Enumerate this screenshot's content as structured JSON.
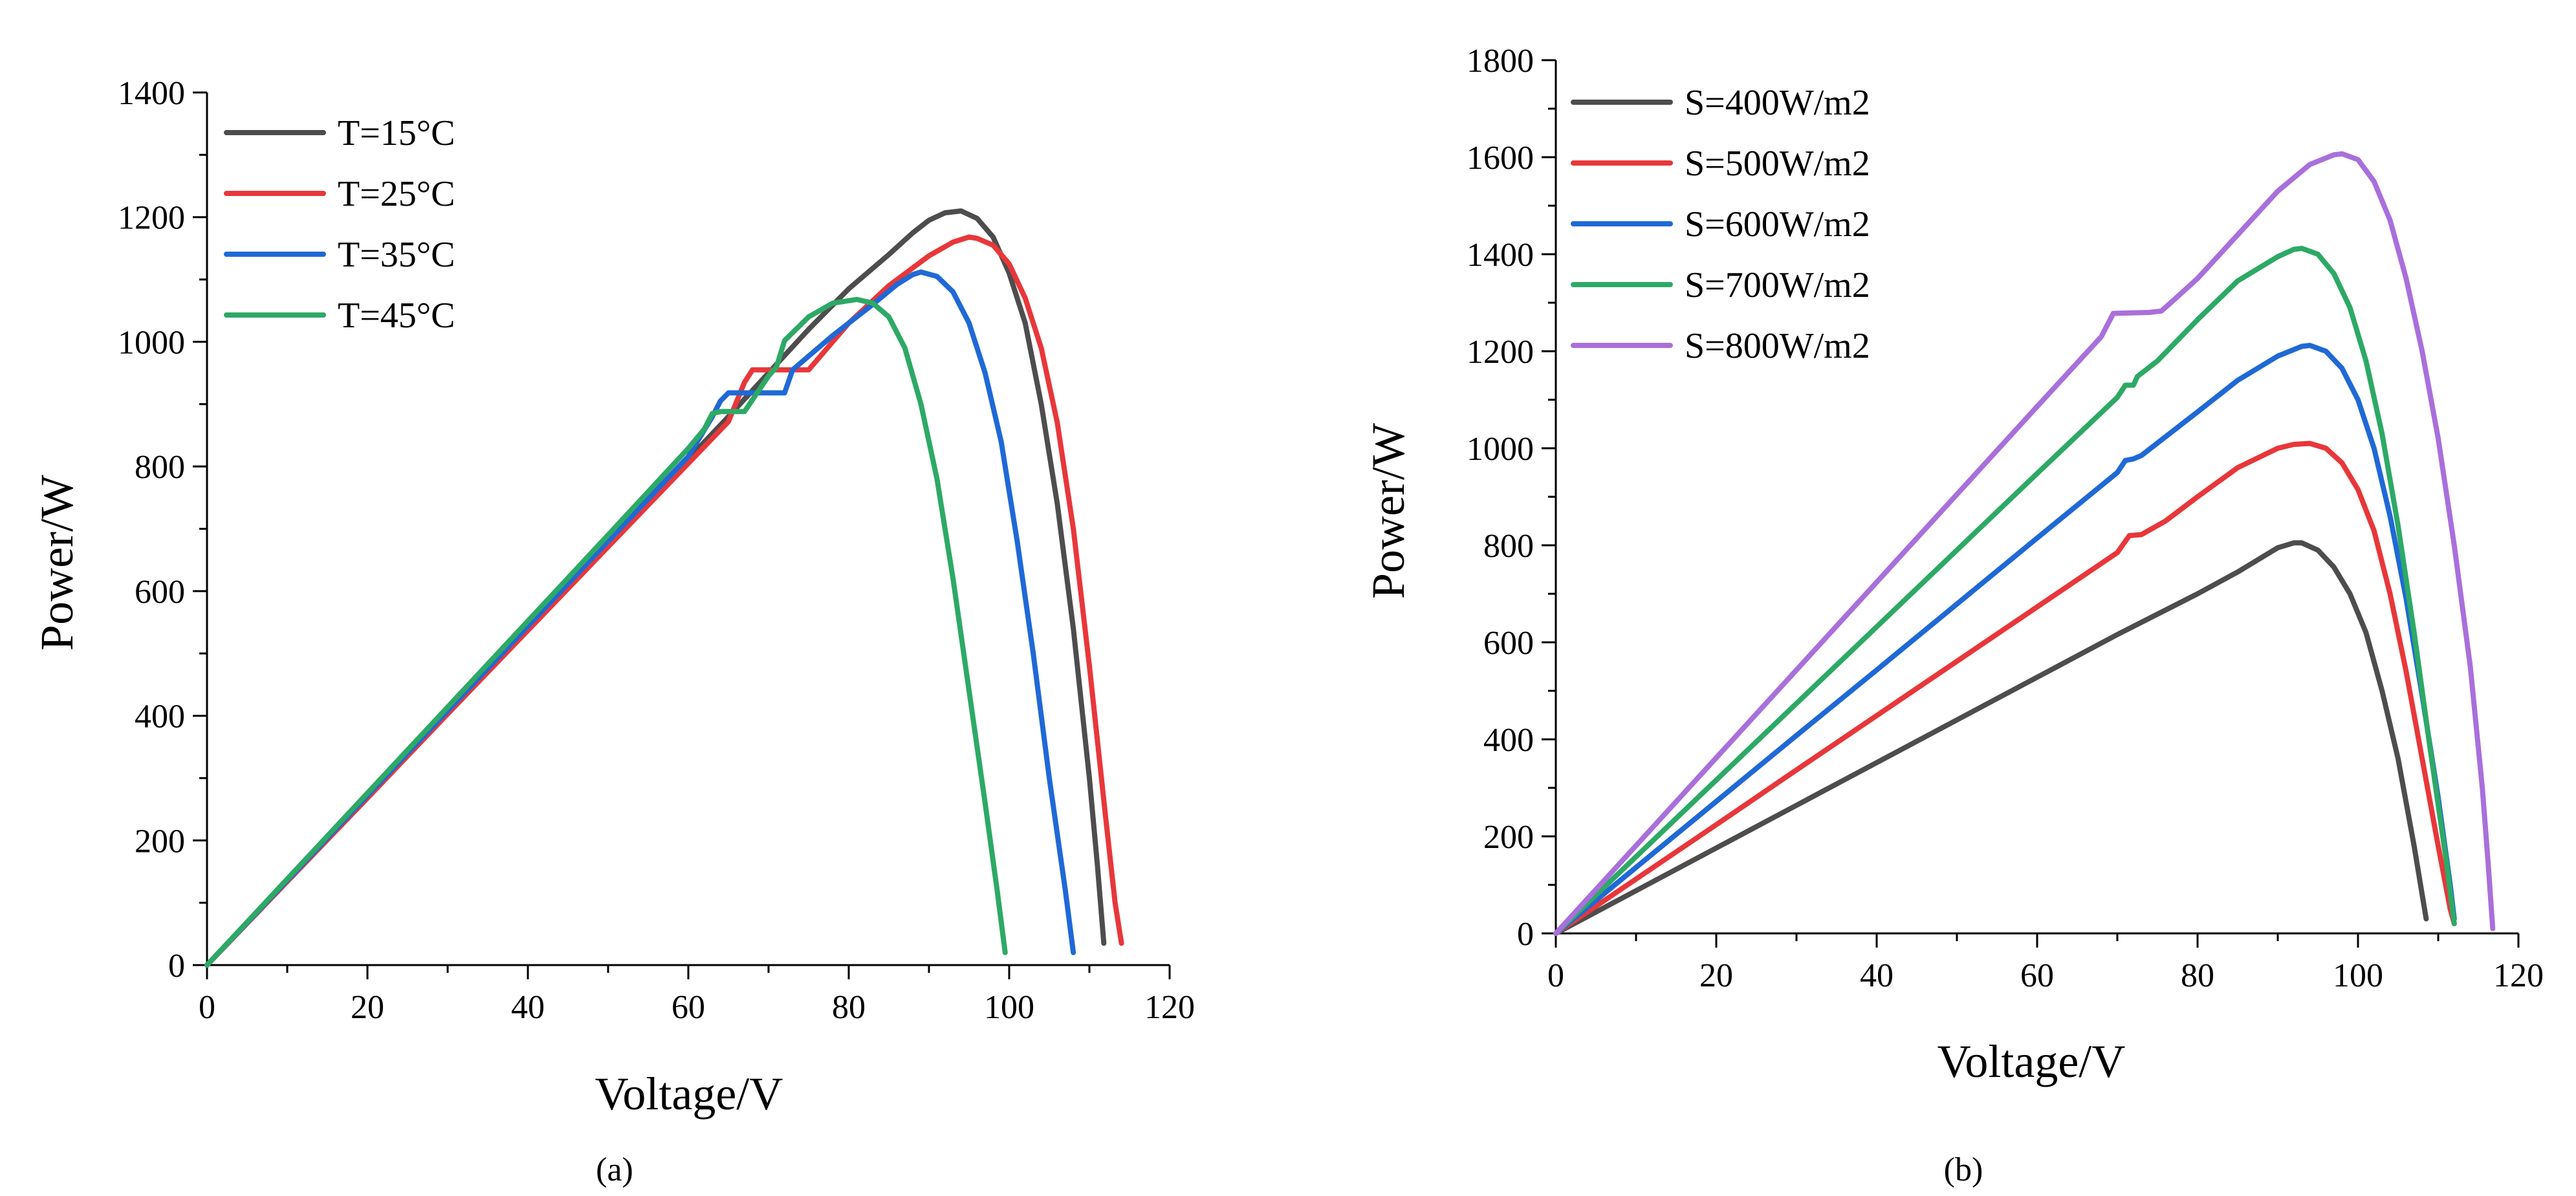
{
  "chart_data": [
    {
      "type": "line",
      "panel_label": "(a)",
      "xlabel": "Voltage/V",
      "ylabel": "Power/W",
      "xlim": [
        0,
        120
      ],
      "ylim": [
        0,
        1400
      ],
      "xticks": [
        0,
        20,
        40,
        60,
        80,
        100,
        120
      ],
      "yticks": [
        0,
        200,
        400,
        600,
        800,
        1000,
        1200,
        1400
      ],
      "legend_position": "top-left",
      "series": [
        {
          "name": "T=15°C",
          "color": "#4d4d4d",
          "points": [
            [
              0,
              0
            ],
            [
              10,
              135
            ],
            [
              20,
              271
            ],
            [
              30,
              406
            ],
            [
              40,
              542
            ],
            [
              50,
              677
            ],
            [
              60,
              812
            ],
            [
              65,
              880
            ],
            [
              70,
              950
            ],
            [
              75,
              1020
            ],
            [
              80,
              1085
            ],
            [
              85,
              1140
            ],
            [
              88,
              1175
            ],
            [
              90,
              1195
            ],
            [
              92,
              1207
            ],
            [
              94,
              1210
            ],
            [
              96,
              1198
            ],
            [
              98,
              1168
            ],
            [
              100,
              1110
            ],
            [
              102,
              1030
            ],
            [
              104,
              900
            ],
            [
              106,
              740
            ],
            [
              108,
              540
            ],
            [
              110,
              300
            ],
            [
              111,
              160
            ],
            [
              111.8,
              35
            ]
          ]
        },
        {
          "name": "T=25°C",
          "color": "#e8373a",
          "points": [
            [
              0,
              0
            ],
            [
              10,
              134
            ],
            [
              20,
              268
            ],
            [
              30,
              403
            ],
            [
              40,
              537
            ],
            [
              50,
              671
            ],
            [
              60,
              805
            ],
            [
              65,
              872
            ],
            [
              67,
              935
            ],
            [
              68,
              955
            ],
            [
              75,
              955
            ],
            [
              80,
              1030
            ],
            [
              85,
              1090
            ],
            [
              90,
              1138
            ],
            [
              93,
              1160
            ],
            [
              95,
              1168
            ],
            [
              96,
              1166
            ],
            [
              98,
              1155
            ],
            [
              100,
              1125
            ],
            [
              102,
              1070
            ],
            [
              104,
              990
            ],
            [
              106,
              870
            ],
            [
              108,
              700
            ],
            [
              110,
              480
            ],
            [
              112,
              240
            ],
            [
              113.2,
              100
            ],
            [
              114,
              35
            ]
          ]
        },
        {
          "name": "T=35°C",
          "color": "#1f69d6",
          "points": [
            [
              0,
              0
            ],
            [
              10,
              136
            ],
            [
              20,
              272
            ],
            [
              30,
              408
            ],
            [
              40,
              544
            ],
            [
              50,
              680
            ],
            [
              60,
              816
            ],
            [
              63,
              880
            ],
            [
              64,
              905
            ],
            [
              65,
              918
            ],
            [
              72,
              918
            ],
            [
              73,
              955
            ],
            [
              78,
              1010
            ],
            [
              83,
              1060
            ],
            [
              86,
              1092
            ],
            [
              88,
              1108
            ],
            [
              89,
              1112
            ],
            [
              91,
              1105
            ],
            [
              93,
              1080
            ],
            [
              95,
              1030
            ],
            [
              97,
              950
            ],
            [
              99,
              840
            ],
            [
              101,
              680
            ],
            [
              103,
              500
            ],
            [
              105,
              300
            ],
            [
              107,
              120
            ],
            [
              108,
              20
            ]
          ]
        },
        {
          "name": "T=45°C",
          "color": "#2da966",
          "points": [
            [
              0,
              0
            ],
            [
              10,
              138
            ],
            [
              20,
              276
            ],
            [
              30,
              414
            ],
            [
              40,
              552
            ],
            [
              50,
              690
            ],
            [
              60,
              829
            ],
            [
              62,
              860
            ],
            [
              63,
              885
            ],
            [
              64,
              888
            ],
            [
              67,
              888
            ],
            [
              70,
              945
            ],
            [
              71,
              960
            ],
            [
              72,
              1002
            ],
            [
              75,
              1040
            ],
            [
              78,
              1062
            ],
            [
              81,
              1068
            ],
            [
              83,
              1062
            ],
            [
              85,
              1040
            ],
            [
              87,
              990
            ],
            [
              89,
              900
            ],
            [
              91,
              780
            ],
            [
              93,
              620
            ],
            [
              95,
              440
            ],
            [
              97,
              260
            ],
            [
              98.5,
              120
            ],
            [
              99.5,
              20
            ]
          ]
        }
      ]
    },
    {
      "type": "line",
      "panel_label": "(b)",
      "xlabel": "Voltage/V",
      "ylabel": "Power/W",
      "xlim": [
        0,
        120
      ],
      "ylim": [
        0,
        1800
      ],
      "xticks": [
        0,
        20,
        40,
        60,
        80,
        100,
        120
      ],
      "yticks": [
        0,
        200,
        400,
        600,
        800,
        1000,
        1200,
        1400,
        1600,
        1800
      ],
      "legend_position": "top-left",
      "series": [
        {
          "name": "S=400W/m2",
          "color": "#4d4d4d",
          "points": [
            [
              0,
              0
            ],
            [
              10,
              88
            ],
            [
              20,
              176
            ],
            [
              30,
              264
            ],
            [
              40,
              352
            ],
            [
              50,
              440
            ],
            [
              60,
              528
            ],
            [
              70,
              616
            ],
            [
              80,
              700
            ],
            [
              85,
              745
            ],
            [
              88,
              775
            ],
            [
              90,
              795
            ],
            [
              92,
              805
            ],
            [
              93,
              805
            ],
            [
              95,
              790
            ],
            [
              97,
              755
            ],
            [
              99,
              700
            ],
            [
              101,
              620
            ],
            [
              103,
              500
            ],
            [
              105,
              360
            ],
            [
              107,
              180
            ],
            [
              108.5,
              30
            ]
          ]
        },
        {
          "name": "S=500W/m2",
          "color": "#e8373a",
          "points": [
            [
              0,
              0
            ],
            [
              10,
              112
            ],
            [
              20,
              224
            ],
            [
              30,
              337
            ],
            [
              40,
              449
            ],
            [
              50,
              561
            ],
            [
              60,
              673
            ],
            [
              70,
              785
            ],
            [
              71.5,
              820
            ],
            [
              73,
              822
            ],
            [
              76,
              850
            ],
            [
              80,
              900
            ],
            [
              85,
              960
            ],
            [
              90,
              1000
            ],
            [
              92,
              1008
            ],
            [
              94,
              1010
            ],
            [
              96,
              1000
            ],
            [
              98,
              970
            ],
            [
              100,
              915
            ],
            [
              102,
              830
            ],
            [
              104,
              700
            ],
            [
              106,
              540
            ],
            [
              108,
              360
            ],
            [
              110,
              180
            ],
            [
              111.5,
              50
            ],
            [
              112,
              20
            ]
          ]
        },
        {
          "name": "S=600W/m2",
          "color": "#1f69d6",
          "points": [
            [
              0,
              0
            ],
            [
              10,
              136
            ],
            [
              20,
              272
            ],
            [
              30,
              408
            ],
            [
              40,
              543
            ],
            [
              50,
              679
            ],
            [
              60,
              815
            ],
            [
              70,
              950
            ],
            [
              71,
              975
            ],
            [
              72,
              978
            ],
            [
              73,
              985
            ],
            [
              80,
              1075
            ],
            [
              85,
              1140
            ],
            [
              90,
              1190
            ],
            [
              93,
              1210
            ],
            [
              94,
              1212
            ],
            [
              96,
              1200
            ],
            [
              98,
              1165
            ],
            [
              100,
              1100
            ],
            [
              102,
              1000
            ],
            [
              104,
              860
            ],
            [
              106,
              690
            ],
            [
              108,
              490
            ],
            [
              110,
              280
            ],
            [
              111.5,
              100
            ],
            [
              112,
              30
            ]
          ]
        },
        {
          "name": "S=700W/m2",
          "color": "#2da966",
          "points": [
            [
              0,
              0
            ],
            [
              10,
              158
            ],
            [
              20,
              316
            ],
            [
              30,
              474
            ],
            [
              40,
              632
            ],
            [
              50,
              790
            ],
            [
              60,
              948
            ],
            [
              70,
              1105
            ],
            [
              71,
              1130
            ],
            [
              72,
              1130
            ],
            [
              72.5,
              1148
            ],
            [
              75,
              1180
            ],
            [
              80,
              1265
            ],
            [
              85,
              1345
            ],
            [
              90,
              1395
            ],
            [
              92,
              1410
            ],
            [
              93,
              1412
            ],
            [
              95,
              1400
            ],
            [
              97,
              1360
            ],
            [
              99,
              1290
            ],
            [
              101,
              1180
            ],
            [
              103,
              1030
            ],
            [
              105,
              840
            ],
            [
              107,
              620
            ],
            [
              109,
              380
            ],
            [
              111,
              150
            ],
            [
              112,
              20
            ]
          ]
        },
        {
          "name": "S=800W/m2",
          "color": "#a96fdb",
          "points": [
            [
              0,
              0
            ],
            [
              10,
              181
            ],
            [
              20,
              362
            ],
            [
              30,
              543
            ],
            [
              40,
              724
            ],
            [
              50,
              905
            ],
            [
              60,
              1086
            ],
            [
              68,
              1230
            ],
            [
              69.5,
              1278
            ],
            [
              74,
              1280
            ],
            [
              75.5,
              1283
            ],
            [
              77,
              1305
            ],
            [
              80,
              1350
            ],
            [
              85,
              1440
            ],
            [
              90,
              1530
            ],
            [
              94,
              1585
            ],
            [
              97,
              1605
            ],
            [
              98,
              1607
            ],
            [
              100,
              1595
            ],
            [
              102,
              1550
            ],
            [
              104,
              1470
            ],
            [
              106,
              1350
            ],
            [
              108,
              1200
            ],
            [
              110,
              1020
            ],
            [
              112,
              800
            ],
            [
              114,
              550
            ],
            [
              115.5,
              300
            ],
            [
              116.2,
              150
            ],
            [
              116.8,
              10
            ]
          ]
        }
      ]
    }
  ]
}
